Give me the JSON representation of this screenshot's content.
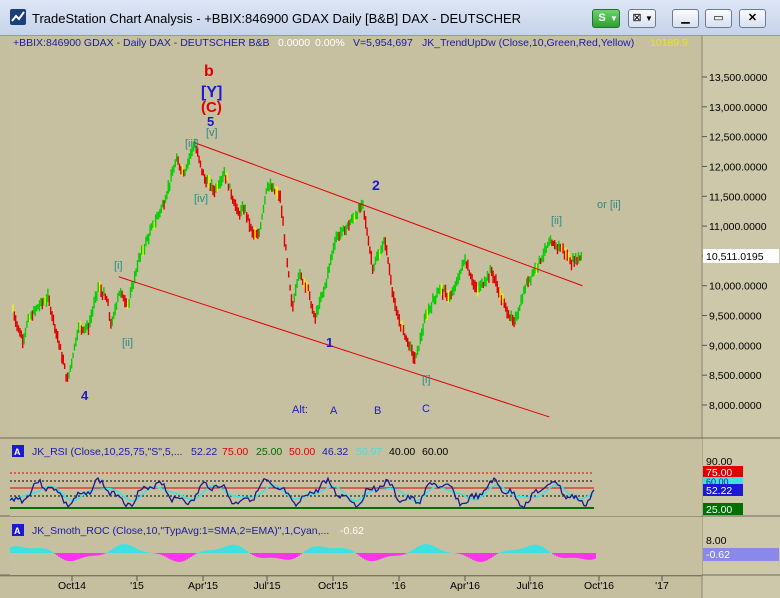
{
  "window": {
    "title": "TradeStation Chart Analysis - +BBIX:846900 GDAX Daily [B&B] DAX - DEUTSCHER",
    "s_button": "S",
    "chart_button": "⊠"
  },
  "header": {
    "symbol_text": "+BBIX:846900 GDAX - Daily  DAX - DEUTSCHER  B&B",
    "change": "0.0000",
    "change_pct": "0.00%",
    "volume": "V=5,954,697",
    "indicator": "JK_TrendUpDw (Close,10,Green,Red,Yellow)",
    "indicator_value": "10189.9"
  },
  "price_panel": {
    "price_ticks": [
      "13,500.0000",
      "13,000.0000",
      "12,500.0000",
      "12,000.0000",
      "11,500.0000",
      "11,000.0000",
      "10,500.0000",
      "10,000.0000",
      "9,500.0000",
      "9,000.0000",
      "8,500.0000",
      "8,000.0000"
    ],
    "last_price": "10,511.0195",
    "annotations": {
      "b": "b",
      "Y": "[Y]",
      "C": "(C)",
      "five": "5",
      "v": "[v]",
      "iii": "[iii]",
      "iv": "[iv]",
      "two": "2",
      "ii_top": "[ii]",
      "or_ii": "or [ii]",
      "i": "[i]",
      "ii_left": "[ii]",
      "four": "4",
      "one": "1",
      "i_bottom": "[i]",
      "alt": "Alt:",
      "A": "A",
      "B": "B",
      "Cc": "C"
    }
  },
  "rsi_panel": {
    "title": "JK_RSI (Close,10,25,75,\"S\",5,...",
    "value": "52.22",
    "v75": "75.00",
    "v25": "25.00",
    "v50": "50.00",
    "v4632": "46.32",
    "v5097": "50.97",
    "v40": "40.00",
    "v60": "60.00",
    "ticks": [
      "90.00"
    ],
    "badge_75": "75.00",
    "badge_60": "60.00",
    "badge_5222": "52.22",
    "badge_25": "25.00"
  },
  "roc_panel": {
    "title": "JK_Smoth_ROC (Close,10,\"TypAvg:1=SMA,2=EMA)\",1,Cyan,...",
    "value": "-0.62",
    "tick": "8.00",
    "badge": "-0.62"
  },
  "x_axis": {
    "labels": [
      "Oct14",
      "'15",
      "Apr'15",
      "Jul'15",
      "Oct'15",
      "'16",
      "Apr'16",
      "Jul'16",
      "Oct'16",
      "'17"
    ]
  },
  "chart_data": {
    "type": "line",
    "series": [
      {
        "values": [
          [
            "2014-08-01",
            9600
          ],
          [
            "2014-08-08",
            9300
          ],
          [
            "2014-08-15",
            9100
          ],
          [
            "2014-08-22",
            9400
          ],
          [
            "2014-09-05",
            9650
          ],
          [
            "2014-09-19",
            9800
          ],
          [
            "2014-10-01",
            9200
          ],
          [
            "2014-10-16",
            8400
          ],
          [
            "2014-10-31",
            9300
          ],
          [
            "2014-11-14",
            9300
          ],
          [
            "2014-11-28",
            9980
          ],
          [
            "2014-12-10",
            9750
          ],
          [
            "2014-12-16",
            9300
          ],
          [
            "2014-12-26",
            9900
          ],
          [
            "2015-01-09",
            9700
          ],
          [
            "2015-01-22",
            10400
          ],
          [
            "2015-02-06",
            10850
          ],
          [
            "2015-02-27",
            11400
          ],
          [
            "2015-03-16",
            12100
          ],
          [
            "2015-03-27",
            11900
          ],
          [
            "2015-04-10",
            12390
          ],
          [
            "2015-04-24",
            11800
          ],
          [
            "2015-05-08",
            11600
          ],
          [
            "2015-05-22",
            11900
          ],
          [
            "2015-06-10",
            11200
          ],
          [
            "2015-06-19",
            11300
          ],
          [
            "2015-06-29",
            10900
          ],
          [
            "2015-07-08",
            10800
          ],
          [
            "2015-07-20",
            11700
          ],
          [
            "2015-08-07",
            11500
          ],
          [
            "2015-08-24",
            9600
          ],
          [
            "2015-09-01",
            10200
          ],
          [
            "2015-09-14",
            10000
          ],
          [
            "2015-09-24",
            9430
          ],
          [
            "2015-10-09",
            10000
          ],
          [
            "2015-10-23",
            10800
          ],
          [
            "2015-11-06",
            10950
          ],
          [
            "2015-11-30",
            11350
          ],
          [
            "2015-12-14",
            10300
          ],
          [
            "2015-12-31",
            10750
          ],
          [
            "2016-01-15",
            9550
          ],
          [
            "2016-02-11",
            8750
          ],
          [
            "2016-02-26",
            9500
          ],
          [
            "2016-03-15",
            9950
          ],
          [
            "2016-04-01",
            9800
          ],
          [
            "2016-04-20",
            10450
          ],
          [
            "2016-05-06",
            9900
          ],
          [
            "2016-05-27",
            10250
          ],
          [
            "2016-06-09",
            9800
          ],
          [
            "2016-06-27",
            9350
          ],
          [
            "2016-07-15",
            10050
          ],
          [
            "2016-08-15",
            10700
          ],
          [
            "2016-08-31",
            10650
          ],
          [
            "2016-09-15",
            10400
          ],
          [
            "2016-09-29",
            10500
          ]
        ]
      }
    ],
    "lines": [
      {
        "x": [
          "2015-04-10",
          "2016-09-30"
        ],
        "y": [
          12400,
          10000
        ]
      },
      {
        "x": [
          "2014-12-26",
          "2016-08-15"
        ],
        "y": [
          10150,
          7800
        ]
      }
    ],
    "ylim": [
      7700,
      13900
    ],
    "xlim": [
      "2014-07-28",
      "2017-03-15"
    ]
  }
}
